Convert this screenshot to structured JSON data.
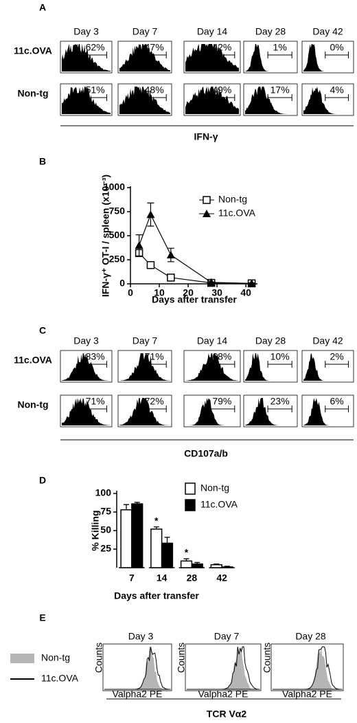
{
  "flow_panels": [
    {
      "label": "A",
      "days": [
        "Day 3",
        "Day 7",
        "Day 14",
        "Day 28",
        "Day 42"
      ],
      "rows": [
        {
          "name": "11c.OVA",
          "percents": [
            "62%",
            "47%",
            "42%",
            "1%",
            "0%"
          ]
        },
        {
          "name": "Non-tg",
          "percents": [
            "51%",
            "48%",
            "49%",
            "17%",
            "4%"
          ]
        }
      ],
      "xlabel": "IFN-γ"
    },
    {
      "label": "C",
      "days": [
        "Day 3",
        "Day 7",
        "Day 14",
        "Day 28",
        "Day 42"
      ],
      "rows": [
        {
          "name": "11c.OVA",
          "percents": [
            "83%",
            "71%",
            "68%",
            "10%",
            "2%"
          ]
        },
        {
          "name": "Non-tg",
          "percents": [
            "71%",
            "72%",
            "79%",
            "23%",
            "6%"
          ]
        }
      ],
      "xlabel": "CD107a/b"
    }
  ],
  "panel_e": {
    "label": "E",
    "days": [
      "Day 3",
      "Day 7",
      "Day 28"
    ],
    "legend": [
      "Non-tg",
      "11c.OVA"
    ],
    "axis_y": "Counts",
    "axis_x": "Valpha2 PE",
    "xlabel": "TCR Vα2"
  },
  "chart_data": [
    {
      "type": "line",
      "label": "B",
      "ylabel": "IFN-γ⁺ OT-I / spleen (x10⁻³)",
      "xlabel": "Days after transfer",
      "x": [
        3,
        7,
        14,
        28,
        42
      ],
      "xlim": [
        0,
        44
      ],
      "xticks": [
        0,
        10,
        20,
        30,
        40
      ],
      "ylim": [
        0,
        1000
      ],
      "yticks": [
        0,
        250,
        500,
        750,
        1000
      ],
      "series": [
        {
          "name": "Non-tg",
          "color": "#000000",
          "marker": "square",
          "values": [
            320,
            195,
            65,
            10,
            5
          ],
          "errors": [
            30,
            20,
            10,
            5,
            5
          ]
        },
        {
          "name": "11c.OVA",
          "color": "#000000",
          "marker": "triangle",
          "values": [
            400,
            720,
            300,
            15,
            5
          ],
          "errors": [
            110,
            120,
            70,
            5,
            5
          ]
        }
      ]
    },
    {
      "type": "bar",
      "label": "D",
      "ylabel": "% Killing",
      "xlabel": "Days after transfer",
      "categories": [
        "7",
        "14",
        "28",
        "42"
      ],
      "ylim": [
        0,
        100
      ],
      "yticks": [
        25,
        50,
        75,
        100
      ],
      "series": [
        {
          "name": "Non-tg",
          "color": "#ffffff",
          "values": [
            78,
            52,
            9,
            4
          ],
          "errors": [
            7,
            3,
            3,
            1
          ]
        },
        {
          "name": "11c.OVA",
          "color": "#000000",
          "values": [
            86,
            33,
            5,
            1
          ],
          "errors": [
            2,
            8,
            2,
            1
          ]
        }
      ],
      "annotations": [
        {
          "text": "*",
          "x": "14"
        },
        {
          "text": "*",
          "x": "28"
        }
      ]
    }
  ]
}
